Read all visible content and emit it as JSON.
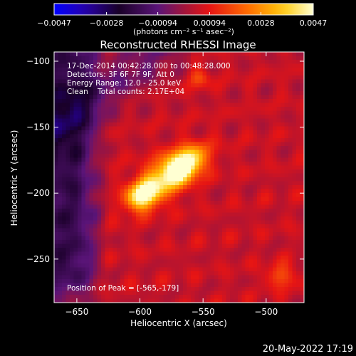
{
  "chart_data": {
    "type": "heatmap",
    "title": "Reconstructed RHESSI Image",
    "xlabel": "Heliocentric X (arcsec)",
    "ylabel": "Heliocentric Y (arcsec)",
    "xlim": [
      -668,
      -470
    ],
    "ylim": [
      -283,
      -93
    ],
    "x_ticks": [
      -650,
      -600,
      -550,
      -500
    ],
    "x_tick_labels": [
      "−650",
      "−600",
      "−550",
      "−500"
    ],
    "y_ticks": [
      -100,
      -150,
      -200,
      -250
    ],
    "y_tick_labels": [
      "−100",
      "−150",
      "−200",
      "−250"
    ],
    "colorbar": {
      "range": [
        -0.0047,
        0.0047
      ],
      "ticks": [
        -0.0047,
        -0.0028,
        -0.00094,
        0.00094,
        0.0028,
        0.0047
      ],
      "tick_labels": [
        "−0.0047",
        "−0.0028",
        "−0.00094",
        "0.00094",
        "0.0028",
        "0.0047"
      ],
      "unit_label": "(photons cm⁻² s⁻¹ asec⁻²)",
      "colormap": "IDL std-gamma-II (blue-black-purple-red-orange-yellow-white)"
    },
    "annotations": [
      "17-Dec-2014 00:42:28.000 to 00:48:28.000",
      "Detectors: 3F 6F 7F 9F, Att 0",
      "Energy Range: 12.0 - 25.0 keV",
      "Clean    Total counts: 2.17E+04"
    ],
    "peak_label": "Position of Peak = [-565,-179]",
    "peak": [
      -565,
      -179
    ],
    "sources": [
      {
        "x": -565,
        "y": -179,
        "sigma_major": 13,
        "sigma_minor": 8,
        "angle_deg": 32,
        "value": 0.0047
      },
      {
        "x": -598,
        "y": -202,
        "sigma_major": 9,
        "sigma_minor": 7,
        "angle_deg": 30,
        "value": 0.004
      },
      {
        "x": -583,
        "y": -190,
        "sigma_major": 16,
        "sigma_minor": 10,
        "angle_deg": 35,
        "value": 0.0024
      },
      {
        "x": -553,
        "y": -113,
        "sigma_major": 6,
        "sigma_minor": 5,
        "angle_deg": 0,
        "value": 0.0012
      },
      {
        "x": -488,
        "y": -263,
        "sigma_major": 8,
        "sigma_minor": 6,
        "angle_deg": 0,
        "value": 0.0014
      }
    ],
    "background_level": 0.0005,
    "dark_region": {
      "x_min": -668,
      "x_max": -625,
      "y_min": -283,
      "y_max": -110,
      "value": -0.0022
    }
  },
  "footer_timestamp": "20-May-2022 17:19"
}
